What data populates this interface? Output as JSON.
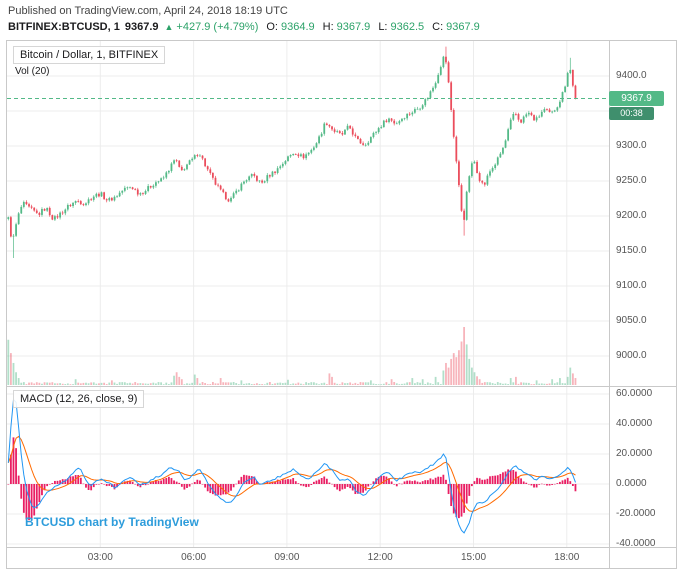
{
  "header": {
    "published_line": "Published on TradingView.com, April 24, 2018 18:19 UTC",
    "symbol": "BITFINEX:BTCUSD, 1",
    "last_price": "9367.9",
    "change_arrow": "▲",
    "change": "+427.9 (+4.79%)",
    "ohlc": [
      {
        "label": "O:",
        "value": "9364.9"
      },
      {
        "label": "H:",
        "value": "9367.9"
      },
      {
        "label": "L:",
        "value": "9362.5"
      },
      {
        "label": "C:",
        "value": "9367.9"
      }
    ]
  },
  "legend": {
    "main": "Bitcoin / Dollar, 1, BITFINEX",
    "volume": "Vol (20)",
    "macd": "MACD (12, 26, close, 9)"
  },
  "badges": {
    "price": "9367.9",
    "countdown": "00:38"
  },
  "watermark": {
    "text": "BTCUSD chart by TradingView"
  },
  "axes": {
    "price_ticks": [
      "9400.0",
      "9300.0",
      "9250.0",
      "9200.0",
      "9150.0",
      "9100.0",
      "9050.0",
      "9000.0"
    ],
    "macd_ticks": [
      "60.0000",
      "40.0000",
      "20.0000",
      "0.0000",
      "-20.0000",
      "-40.0000"
    ],
    "time_ticks": [
      "03:00",
      "06:00",
      "09:00",
      "12:00",
      "15:00",
      "18:00"
    ]
  },
  "colors": {
    "up": "#53b987",
    "down": "#eb4d5c",
    "vol_up": "rgba(83,185,135,0.45)",
    "vol_down": "rgba(235,77,92,0.42)",
    "macd_line": "#2196f3",
    "signal_line": "#ff6a00",
    "histogram": "#e91e63",
    "price_line": "#53b987",
    "price_badge_bg": "#53b987",
    "countdown_badge_bg": "#3f8f6d",
    "grid": "#ececec",
    "separator": "#c9c9c9",
    "border": "#c9c9c9",
    "axis_text": "#555555",
    "header_text": "#444444",
    "symbol_text": "#1b1b1d",
    "green_text": "#2ca269",
    "link": "#2d9cdb"
  },
  "chart_data": {
    "type": "candlestick",
    "title": "Bitcoin / Dollar, 1, BITFINEX",
    "exchange": "BITFINEX",
    "symbol": "BTCUSD",
    "interval": "1m",
    "panes": [
      "price+volume",
      "MACD (12, 26, close, 9)"
    ],
    "time_range_hours": [
      0,
      18.32
    ],
    "price_ylim": [
      8957,
      9443
    ],
    "macd_ylim": [
      -42,
      65
    ],
    "price_gridlines": [
      9400,
      9350,
      9300,
      9250,
      9200,
      9150,
      9100,
      9050,
      9000
    ],
    "last": {
      "price": 9367.9,
      "open": 9364.9,
      "high": 9367.9,
      "low": 9362.5,
      "close": 9367.9,
      "change": 427.9,
      "change_pct": 4.79
    },
    "samples": 220,
    "price_keyframes": [
      [
        0,
        9208
      ],
      [
        0.08,
        9185
      ],
      [
        0.17,
        9162
      ],
      [
        0.25,
        9178
      ],
      [
        0.33,
        9196
      ],
      [
        0.5,
        9218
      ],
      [
        0.75,
        9210
      ],
      [
        1,
        9202
      ],
      [
        1.25,
        9212
      ],
      [
        1.5,
        9195
      ],
      [
        1.75,
        9205
      ],
      [
        2,
        9215
      ],
      [
        2.25,
        9222
      ],
      [
        2.5,
        9218
      ],
      [
        2.75,
        9228
      ],
      [
        3,
        9232
      ],
      [
        3.25,
        9222
      ],
      [
        3.5,
        9228
      ],
      [
        3.75,
        9238
      ],
      [
        4,
        9242
      ],
      [
        4.25,
        9232
      ],
      [
        4.5,
        9238
      ],
      [
        4.75,
        9248
      ],
      [
        5,
        9252
      ],
      [
        5.25,
        9270
      ],
      [
        5.42,
        9282
      ],
      [
        5.58,
        9262
      ],
      [
        5.75,
        9272
      ],
      [
        6,
        9282
      ],
      [
        6.17,
        9292
      ],
      [
        6.42,
        9268
      ],
      [
        6.67,
        9248
      ],
      [
        6.92,
        9232
      ],
      [
        7.17,
        9222
      ],
      [
        7.42,
        9238
      ],
      [
        7.67,
        9252
      ],
      [
        7.92,
        9258
      ],
      [
        8.17,
        9246
      ],
      [
        8.42,
        9258
      ],
      [
        8.67,
        9266
      ],
      [
        9,
        9282
      ],
      [
        9.25,
        9292
      ],
      [
        9.5,
        9284
      ],
      [
        9.75,
        9292
      ],
      [
        10,
        9308
      ],
      [
        10.25,
        9335
      ],
      [
        10.5,
        9322
      ],
      [
        10.75,
        9315
      ],
      [
        11,
        9328
      ],
      [
        11.25,
        9308
      ],
      [
        11.5,
        9302
      ],
      [
        11.75,
        9315
      ],
      [
        12,
        9328
      ],
      [
        12.25,
        9340
      ],
      [
        12.5,
        9332
      ],
      [
        12.75,
        9342
      ],
      [
        13,
        9348
      ],
      [
        13.25,
        9355
      ],
      [
        13.5,
        9368
      ],
      [
        13.75,
        9388
      ],
      [
        13.92,
        9412
      ],
      [
        14.08,
        9432
      ],
      [
        14.17,
        9402
      ],
      [
        14.33,
        9330
      ],
      [
        14.5,
        9255
      ],
      [
        14.67,
        9186
      ],
      [
        14.83,
        9252
      ],
      [
        15,
        9282
      ],
      [
        15.17,
        9256
      ],
      [
        15.33,
        9242
      ],
      [
        15.5,
        9262
      ],
      [
        15.75,
        9278
      ],
      [
        16,
        9302
      ],
      [
        16.17,
        9332
      ],
      [
        16.33,
        9348
      ],
      [
        16.5,
        9334
      ],
      [
        16.75,
        9348
      ],
      [
        17,
        9336
      ],
      [
        17.25,
        9352
      ],
      [
        17.5,
        9345
      ],
      [
        17.75,
        9362
      ],
      [
        17.92,
        9382
      ],
      [
        18.08,
        9418
      ],
      [
        18.17,
        9392
      ],
      [
        18.25,
        9372
      ],
      [
        18.32,
        9367.9
      ]
    ],
    "wick_overrides": [
      [
        2,
        null,
        9140
      ],
      [
        169,
        9442,
        null
      ],
      [
        176,
        null,
        9172
      ],
      [
        217,
        9426,
        null
      ]
    ],
    "volume_spikes": [
      [
        0,
        78
      ],
      [
        1,
        55
      ],
      [
        2,
        38
      ],
      [
        3,
        22
      ],
      [
        4,
        12
      ],
      [
        26,
        10
      ],
      [
        40,
        8
      ],
      [
        64,
        16
      ],
      [
        65,
        22
      ],
      [
        66,
        14
      ],
      [
        67,
        10
      ],
      [
        72,
        18
      ],
      [
        73,
        12
      ],
      [
        82,
        12
      ],
      [
        90,
        8
      ],
      [
        108,
        9
      ],
      [
        124,
        20
      ],
      [
        125,
        14
      ],
      [
        140,
        8
      ],
      [
        148,
        10
      ],
      [
        156,
        12
      ],
      [
        160,
        10
      ],
      [
        165,
        14
      ],
      [
        168,
        25
      ],
      [
        169,
        38
      ],
      [
        170,
        30
      ],
      [
        171,
        45
      ],
      [
        172,
        55
      ],
      [
        173,
        48
      ],
      [
        174,
        60
      ],
      [
        175,
        75
      ],
      [
        176,
        100
      ],
      [
        177,
        70
      ],
      [
        178,
        45
      ],
      [
        179,
        30
      ],
      [
        180,
        22
      ],
      [
        181,
        15
      ],
      [
        182,
        10
      ],
      [
        194,
        12
      ],
      [
        196,
        14
      ],
      [
        204,
        8
      ],
      [
        210,
        10
      ],
      [
        213,
        12
      ],
      [
        216,
        14
      ],
      [
        217,
        30
      ],
      [
        218,
        20
      ],
      [
        219,
        12
      ]
    ],
    "macd_keyframes": [
      [
        0,
        2
      ],
      [
        0.08,
        25
      ],
      [
        0.17,
        52
      ],
      [
        0.25,
        61
      ],
      [
        0.33,
        48
      ],
      [
        0.42,
        28
      ],
      [
        0.5,
        12
      ],
      [
        0.58,
        2
      ],
      [
        0.67,
        -8
      ],
      [
        0.83,
        -16
      ],
      [
        1,
        -14
      ],
      [
        1.17,
        -9
      ],
      [
        1.33,
        -5
      ],
      [
        1.5,
        -2
      ],
      [
        1.75,
        1
      ],
      [
        2,
        4
      ],
      [
        2.17,
        9
      ],
      [
        2.33,
        11
      ],
      [
        2.5,
        4
      ],
      [
        2.67,
        -2
      ],
      [
        2.83,
        1
      ],
      [
        3,
        4
      ],
      [
        3.25,
        1
      ],
      [
        3.5,
        -3
      ],
      [
        3.75,
        2
      ],
      [
        4,
        4
      ],
      [
        4.25,
        -1
      ],
      [
        4.5,
        1
      ],
      [
        4.75,
        4
      ],
      [
        5,
        6
      ],
      [
        5.25,
        11
      ],
      [
        5.5,
        9
      ],
      [
        5.75,
        2
      ],
      [
        6,
        7
      ],
      [
        6.17,
        10
      ],
      [
        6.42,
        2
      ],
      [
        6.67,
        -6
      ],
      [
        6.92,
        -11
      ],
      [
        7.17,
        -13
      ],
      [
        7.42,
        -6
      ],
      [
        7.67,
        2
      ],
      [
        7.92,
        5
      ],
      [
        8.17,
        -1
      ],
      [
        8.42,
        2
      ],
      [
        8.67,
        4
      ],
      [
        9,
        8
      ],
      [
        9.25,
        10
      ],
      [
        9.5,
        4
      ],
      [
        9.75,
        4
      ],
      [
        10,
        9
      ],
      [
        10.25,
        14
      ],
      [
        10.5,
        8
      ],
      [
        10.75,
        2
      ],
      [
        11,
        3
      ],
      [
        11.25,
        -6
      ],
      [
        11.5,
        -8
      ],
      [
        11.75,
        -2
      ],
      [
        12,
        5
      ],
      [
        12.25,
        8
      ],
      [
        12.5,
        2
      ],
      [
        12.75,
        5
      ],
      [
        13,
        7
      ],
      [
        13.25,
        8
      ],
      [
        13.5,
        10
      ],
      [
        13.75,
        14
      ],
      [
        14,
        19
      ],
      [
        14.08,
        21
      ],
      [
        14.17,
        10
      ],
      [
        14.33,
        -12
      ],
      [
        14.5,
        -26
      ],
      [
        14.67,
        -34
      ],
      [
        14.83,
        -28
      ],
      [
        15,
        -16
      ],
      [
        15.17,
        -12
      ],
      [
        15.33,
        -13
      ],
      [
        15.5,
        -9
      ],
      [
        15.75,
        -4
      ],
      [
        16,
        3
      ],
      [
        16.17,
        9
      ],
      [
        16.33,
        12
      ],
      [
        16.5,
        9
      ],
      [
        16.75,
        7
      ],
      [
        17,
        3
      ],
      [
        17.25,
        5
      ],
      [
        17.5,
        3
      ],
      [
        17.75,
        5
      ],
      [
        17.92,
        9
      ],
      [
        18.08,
        12
      ],
      [
        18.17,
        6
      ],
      [
        18.32,
        0
      ]
    ],
    "signal_ema_alpha": 0.18
  }
}
